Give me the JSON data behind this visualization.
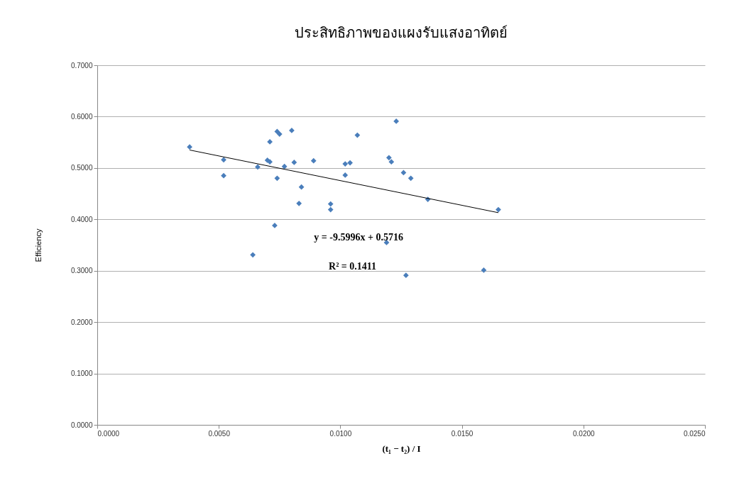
{
  "chart_data": {
    "type": "scatter",
    "title": "ประสิทธิภาพของแผงรับแสงอาทิตย์",
    "xlabel": "(t₁ − t₂) / I",
    "ylabel": "Efficiency",
    "xlim": [
      0,
      0.025
    ],
    "xticks": [
      {
        "value": 0,
        "label": "0.0000"
      },
      {
        "value": 0.005,
        "label": "0.0050"
      },
      {
        "value": 0.01,
        "label": "0.0100"
      },
      {
        "value": 0.015,
        "label": "0.0150"
      },
      {
        "value": 0.02,
        "label": "0.0200"
      },
      {
        "value": 0.025,
        "label": "0.0250"
      }
    ],
    "ylim": [
      0,
      0.7
    ],
    "yticks": [
      {
        "value": 0,
        "label": "0.0000"
      },
      {
        "value": 0.1,
        "label": "0.1000"
      },
      {
        "value": 0.2,
        "label": "0.2000"
      },
      {
        "value": 0.3,
        "label": "0.3000"
      },
      {
        "value": 0.4,
        "label": "0.4000"
      },
      {
        "value": 0.5,
        "label": "0.5000"
      },
      {
        "value": 0.6,
        "label": "0.6000"
      },
      {
        "value": 0.7,
        "label": "0.7000"
      }
    ],
    "grid": "y",
    "marker": "diamond",
    "series": [
      {
        "type": "scatter",
        "color": "#4a7ebb",
        "x": [
          0.0038,
          0.0052,
          0.0052,
          0.0066,
          0.0064,
          0.007,
          0.0071,
          0.0071,
          0.0074,
          0.0075,
          0.0074,
          0.0073,
          0.0077,
          0.008,
          0.0081,
          0.0083,
          0.0084,
          0.0089,
          0.0096,
          0.0096,
          0.0102,
          0.0104,
          0.0102,
          0.0107,
          0.0123,
          0.012,
          0.0121,
          0.0126,
          0.0129,
          0.0136,
          0.0165,
          0.0119,
          0.0127,
          0.0159
        ],
        "values": [
          0.541,
          0.516,
          0.485,
          0.502,
          0.331,
          0.515,
          0.512,
          0.551,
          0.571,
          0.566,
          0.48,
          0.388,
          0.503,
          0.573,
          0.511,
          0.431,
          0.463,
          0.514,
          0.43,
          0.419,
          0.508,
          0.51,
          0.486,
          0.564,
          0.591,
          0.52,
          0.512,
          0.491,
          0.48,
          0.439,
          0.419,
          0.355,
          0.291,
          0.301
        ]
      },
      {
        "type": "line",
        "color": "#000000",
        "marker": "none",
        "x": [
          0.0038,
          0.0165
        ],
        "values": [
          0.535,
          0.413
        ]
      }
    ],
    "annotations": [
      "y = -9.5996x + 0.5716",
      "R² = 0.1411"
    ]
  }
}
